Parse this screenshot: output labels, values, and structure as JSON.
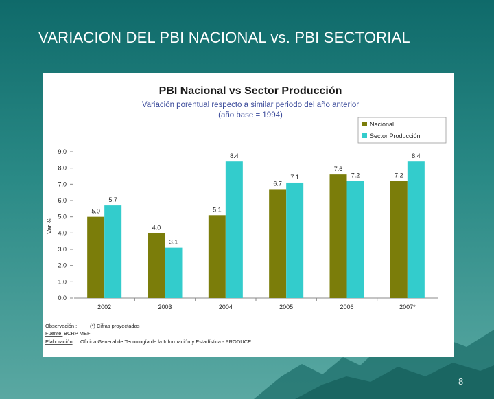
{
  "slide": {
    "title": "VARIACION DEL PBI NACIONAL vs. PBI SECTORIAL",
    "page_number": "8"
  },
  "colors": {
    "nacional": "#7b7d0a",
    "sector": "#33cccc",
    "title_text": "#1a1a1a",
    "subtitle_text": "#3a4a9a"
  },
  "chart_data": {
    "type": "bar",
    "title": "PBI Nacional vs Sector Producción",
    "subtitle_line1": "Variación porentual respecto a similar periodo del año anterior",
    "subtitle_line2": "(año base = 1994)",
    "ylabel": "Var %",
    "xlabel": "",
    "ylim": [
      0,
      9
    ],
    "yticks": [
      "9.0",
      "8.0",
      "7.0",
      "6.0",
      "5.0",
      "4.0",
      "3.0",
      "2.0",
      "1.0",
      "0.0"
    ],
    "categories": [
      "2002",
      "2003",
      "2004",
      "2005",
      "2006",
      "2007*"
    ],
    "series": [
      {
        "name": "Nacional",
        "values": [
          5.0,
          4.0,
          5.1,
          6.7,
          7.6,
          7.2
        ],
        "labels": [
          "5.0",
          "4.0",
          "5.1",
          "6.7",
          "7.6",
          "7.2"
        ]
      },
      {
        "name": "Sector Producción",
        "values": [
          5.7,
          3.1,
          8.4,
          7.1,
          7.2,
          8.4
        ],
        "labels": [
          "5.7",
          "3.1",
          "8.4",
          "7.1",
          "7.2",
          "8.4"
        ]
      }
    ],
    "legend_position": "top-right",
    "notes": {
      "observacion_label": "Observación :",
      "observacion_text": "(*) Cifras proyectadas",
      "fuente_label": "Fuente:",
      "fuente_text": "BCRP  MEF",
      "elaboracion_label": "Elaboración",
      "elaboracion_text": "Oficina General de Tecnología de la Información y Estadística - PRODUCE"
    }
  }
}
